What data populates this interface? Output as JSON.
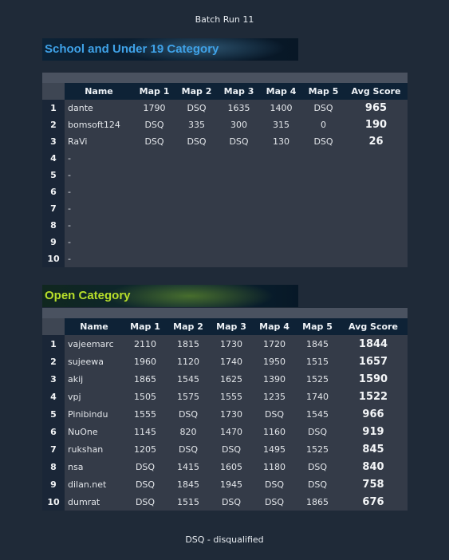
{
  "title": "Batch Run 11",
  "footer": "DSQ - disqualified",
  "columns": [
    "Name",
    "Map 1",
    "Map 2",
    "Map 3",
    "Map 4",
    "Map 5",
    "Avg Score"
  ],
  "school": {
    "heading": "School and Under 19 Category",
    "rows": [
      {
        "rank": "1",
        "name": "dante",
        "m1": "1790",
        "m2": "DSQ",
        "m3": "1635",
        "m4": "1400",
        "m5": "DSQ",
        "avg": "965"
      },
      {
        "rank": "2",
        "name": "bomsoft124",
        "m1": "DSQ",
        "m2": "335",
        "m3": "300",
        "m4": "315",
        "m5": "0",
        "avg": "190"
      },
      {
        "rank": "3",
        "name": "RaVi",
        "m1": "DSQ",
        "m2": "DSQ",
        "m3": "DSQ",
        "m4": "130",
        "m5": "DSQ",
        "avg": "26"
      },
      {
        "rank": "4",
        "name": "-",
        "m1": "",
        "m2": "",
        "m3": "",
        "m4": "",
        "m5": "",
        "avg": ""
      },
      {
        "rank": "5",
        "name": "-",
        "m1": "",
        "m2": "",
        "m3": "",
        "m4": "",
        "m5": "",
        "avg": ""
      },
      {
        "rank": "6",
        "name": "-",
        "m1": "",
        "m2": "",
        "m3": "",
        "m4": "",
        "m5": "",
        "avg": ""
      },
      {
        "rank": "7",
        "name": "-",
        "m1": "",
        "m2": "",
        "m3": "",
        "m4": "",
        "m5": "",
        "avg": ""
      },
      {
        "rank": "8",
        "name": "-",
        "m1": "",
        "m2": "",
        "m3": "",
        "m4": "",
        "m5": "",
        "avg": ""
      },
      {
        "rank": "9",
        "name": "-",
        "m1": "",
        "m2": "",
        "m3": "",
        "m4": "",
        "m5": "",
        "avg": ""
      },
      {
        "rank": "10",
        "name": "-",
        "m1": "",
        "m2": "",
        "m3": "",
        "m4": "",
        "m5": "",
        "avg": ""
      }
    ]
  },
  "open": {
    "heading": "Open Category",
    "rows": [
      {
        "rank": "1",
        "name": "vajeemarc",
        "m1": "2110",
        "m2": "1815",
        "m3": "1730",
        "m4": "1720",
        "m5": "1845",
        "avg": "1844"
      },
      {
        "rank": "2",
        "name": "sujeewa",
        "m1": "1960",
        "m2": "1120",
        "m3": "1740",
        "m4": "1950",
        "m5": "1515",
        "avg": "1657"
      },
      {
        "rank": "3",
        "name": "akij",
        "m1": "1865",
        "m2": "1545",
        "m3": "1625",
        "m4": "1390",
        "m5": "1525",
        "avg": "1590"
      },
      {
        "rank": "4",
        "name": "vpj",
        "m1": "1505",
        "m2": "1575",
        "m3": "1555",
        "m4": "1235",
        "m5": "1740",
        "avg": "1522"
      },
      {
        "rank": "5",
        "name": "Pinibindu",
        "m1": "1555",
        "m2": "DSQ",
        "m3": "1730",
        "m4": "DSQ",
        "m5": "1545",
        "avg": "966"
      },
      {
        "rank": "6",
        "name": "NuOne",
        "m1": "1145",
        "m2": "820",
        "m3": "1470",
        "m4": "1160",
        "m5": "DSQ",
        "avg": "919"
      },
      {
        "rank": "7",
        "name": "rukshan",
        "m1": "1205",
        "m2": "DSQ",
        "m3": "DSQ",
        "m4": "1495",
        "m5": "1525",
        "avg": "845"
      },
      {
        "rank": "8",
        "name": "nsa",
        "m1": "DSQ",
        "m2": "1415",
        "m3": "1605",
        "m4": "1180",
        "m5": "DSQ",
        "avg": "840"
      },
      {
        "rank": "9",
        "name": "dilan.net",
        "m1": "DSQ",
        "m2": "1845",
        "m3": "1945",
        "m4": "DSQ",
        "m5": "DSQ",
        "avg": "758"
      },
      {
        "rank": "10",
        "name": "dumrat",
        "m1": "DSQ",
        "m2": "1515",
        "m3": "DSQ",
        "m4": "DSQ",
        "m5": "1865",
        "avg": "676"
      }
    ]
  }
}
